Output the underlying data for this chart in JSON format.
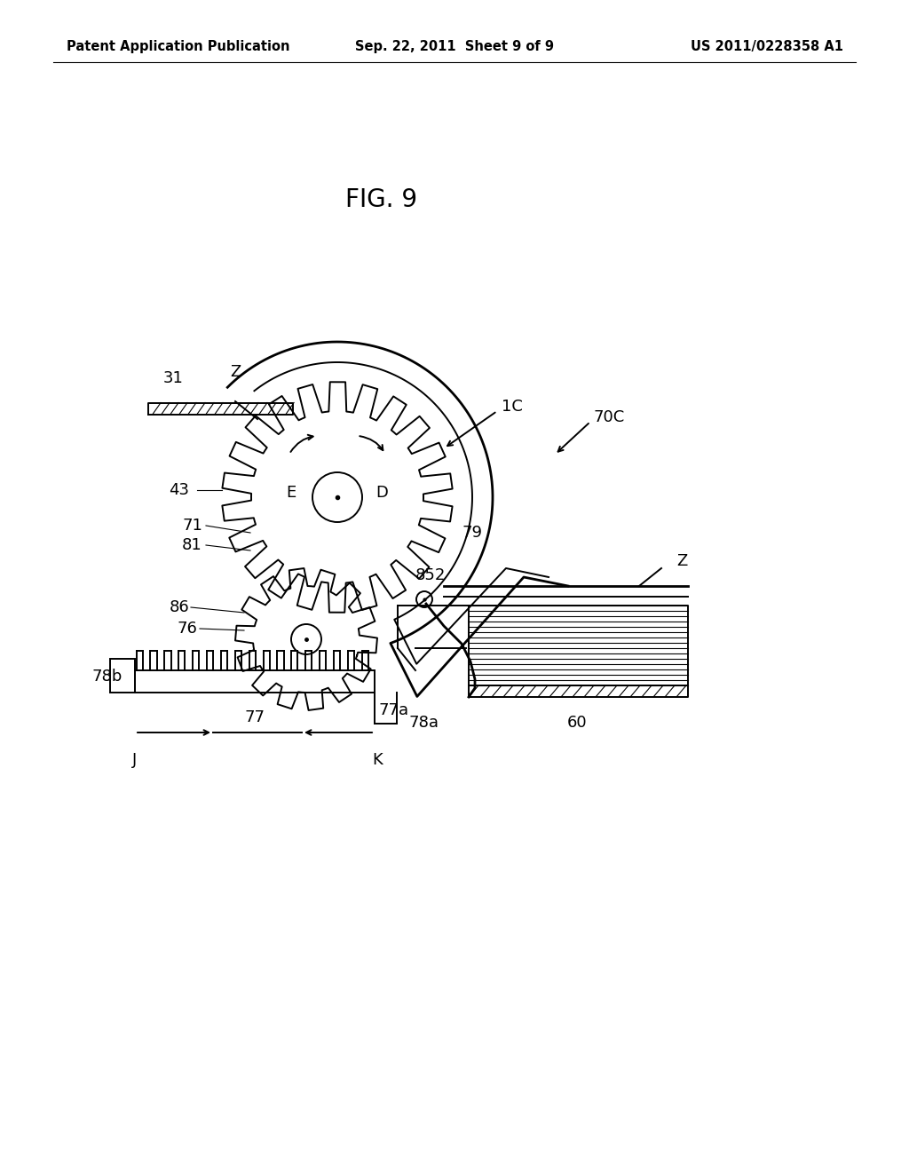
{
  "bg_color": "#ffffff",
  "title": "FIG. 9",
  "title_fontsize": 20,
  "header_left": "Patent Application Publication",
  "header_center": "Sep. 22, 2011  Sheet 9 of 9",
  "header_right": "US 2011/0228358 A1",
  "header_fontsize": 10.5,
  "fig_width": 10.24,
  "fig_height": 13.2
}
